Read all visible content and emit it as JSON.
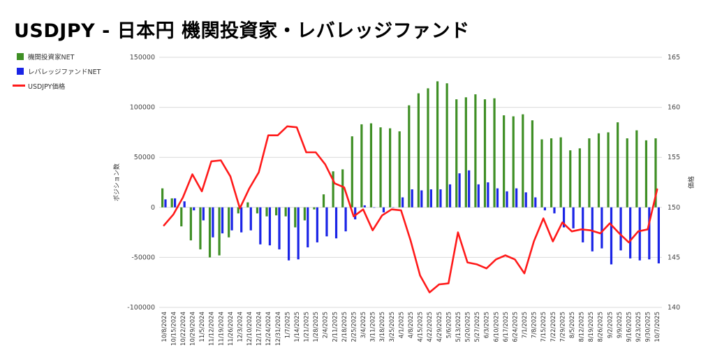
{
  "title": "USDJPY - 日本円 機関投資家・レバレッジファンド",
  "colors": {
    "institutional": "#3f8f25",
    "leveraged": "#1a24e6",
    "price": "#ff1a1a"
  },
  "legend": [
    {
      "label": "機関投資家NET",
      "kind": "bar",
      "color": "#3f8f25"
    },
    {
      "label": "レバレッジファンドNET",
      "kind": "bar",
      "color": "#1a24e6"
    },
    {
      "label": "USDJPY価格",
      "kind": "line",
      "color": "#ff1a1a"
    }
  ],
  "chart_data": {
    "type": "bar+line",
    "title": "USDJPY - 日本円 機関投資家・レバレッジファンド",
    "ylabel": "ポジション数",
    "y2label": "価格",
    "ylim": [
      -100000,
      150000
    ],
    "y2lim": [
      140,
      165
    ],
    "yticks": [
      "150000",
      "100000",
      "50000",
      "0",
      "-50000",
      "-100000"
    ],
    "y2ticks": [
      "165",
      "160",
      "155",
      "150",
      "145",
      "140"
    ],
    "categories": [
      "10/8/2024",
      "10/15/2024",
      "10/22/2024",
      "10/29/2024",
      "11/5/2024",
      "11/12/2024",
      "11/19/2024",
      "11/26/2024",
      "12/3/2024",
      "12/10/2024",
      "12/17/2024",
      "12/24/2024",
      "12/31/2024",
      "1/7/2025",
      "1/14/2025",
      "1/21/2025",
      "1/28/2025",
      "2/4/2025",
      "2/11/2025",
      "2/18/2025",
      "2/25/2025",
      "3/4/2025",
      "3/11/2025",
      "3/18/2025",
      "3/25/2025",
      "4/1/2025",
      "4/8/2025",
      "4/15/2025",
      "4/22/2025",
      "4/29/2025",
      "5/6/2025",
      "5/13/2025",
      "5/20/2025",
      "5/27/2025",
      "6/3/2025",
      "6/10/2025",
      "6/17/2025",
      "6/24/2025",
      "7/1/2025",
      "7/8/2025",
      "7/15/2025",
      "7/22/2025",
      "7/29/2025",
      "8/5/2025",
      "8/12/2025",
      "8/19/2025",
      "8/26/2025",
      "9/2/2025",
      "9/9/2025",
      "9/16/2025",
      "9/23/2025",
      "9/30/2025",
      "10/7/2025"
    ],
    "series": [
      {
        "name": "機関投資家NET",
        "type": "bar",
        "values": [
          19000,
          9000,
          -19000,
          -33000,
          -42000,
          -50000,
          -48000,
          -30000,
          -6000,
          5000,
          -6000,
          -9000,
          -8000,
          -9000,
          -20000,
          -13000,
          -2000,
          13000,
          36000,
          38000,
          71000,
          83000,
          84000,
          80000,
          79000,
          76000,
          102000,
          114000,
          119000,
          126000,
          124000,
          108000,
          110000,
          113000,
          108000,
          109000,
          92000,
          91000,
          93000,
          87000,
          68000,
          69000,
          70000,
          57000,
          59000,
          69000,
          74000,
          75000,
          85000,
          69000,
          77000,
          67000,
          69000
        ]
      },
      {
        "name": "レバレッジファンドNET",
        "type": "bar",
        "values": [
          8000,
          9000,
          6000,
          -3000,
          -13000,
          -30000,
          -26000,
          -23000,
          -25000,
          -23000,
          -37000,
          -38000,
          -42000,
          -53000,
          -52000,
          -40000,
          -35000,
          -29000,
          -31000,
          -24000,
          -12000,
          2000,
          0,
          -5000,
          0,
          10000,
          18000,
          17000,
          18000,
          18000,
          23000,
          34000,
          37000,
          23000,
          25000,
          19000,
          16000,
          19000,
          15000,
          10000,
          -3000,
          -6000,
          -20000,
          -21000,
          -35000,
          -44000,
          -41000,
          -57000,
          -43000,
          -51000,
          -53000,
          -52000,
          -56000
        ]
      },
      {
        "name": "USDJPY価格",
        "type": "line",
        "axis": "right",
        "values": [
          148.2,
          149.3,
          151.0,
          153.3,
          151.6,
          154.6,
          154.7,
          153.1,
          149.9,
          151.9,
          153.5,
          157.2,
          157.2,
          158.1,
          158.0,
          155.5,
          155.5,
          154.3,
          152.4,
          152.0,
          149.1,
          149.8,
          147.7,
          149.2,
          149.8,
          149.7,
          146.7,
          143.2,
          141.5,
          142.3,
          142.4,
          147.5,
          144.5,
          144.3,
          143.9,
          144.8,
          145.2,
          144.8,
          143.4,
          146.6,
          148.9,
          146.6,
          148.5,
          147.6,
          147.8,
          147.7,
          147.4,
          148.4,
          147.4,
          146.5,
          147.6,
          147.8,
          151.8
        ]
      }
    ]
  }
}
